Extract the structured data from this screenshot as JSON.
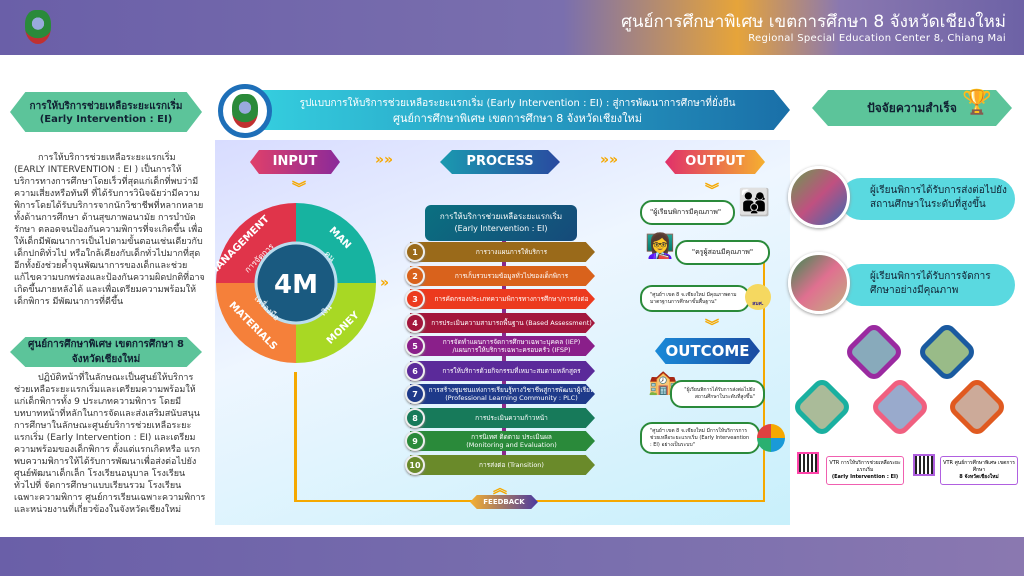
{
  "header": {
    "title_th": "ศูนย์การศึกษาพิเศษ เขตการศึกษา 8 จังหวัดเชียงใหม่",
    "title_en": "Regional Special Education Center 8, Chiang Mai"
  },
  "left": {
    "banner": [
      "การให้บริการช่วยเหลือระยะแรกเริ่ม",
      "(Early Intervention : EI)"
    ],
    "para1": "การให้บริการช่วยเหลือระยะแรกเริ่ม (EARLY INTERVENTION : EI ) เป็นการให้บริการทางการศึกษาโดยเร็วที่สุดแก่เด็กที่พบว่ามีความเสี่ยงหรือทันที ที่ได้รับการวินิจฉัยว่ามีความพิการโดยได้รับบริการจากนักวิชาชีพที่หลากหลายทั้งด้านการศึกษา ด้านสุขภาพอนามัย การบำบัดรักษา ตลอดจนป้องกันความพิการที่จะเกิดขึ้น เพื่อให้เด็กมีพัฒนาการเป็นไปตามขั้นตอนเช่นเดียวกับเด็กปกติทั่วไป หรือใกล้เคียงกับเด็กทั่วไปมากที่สุด อีกทั้งยังช่วยค้ำจุนพัฒนาการของเด็กและช่วยแก้ไขความบกพร่องและป้องกันความผิดปกติที่อาจเกิดขึ้นภายหลังได้ และเพื่อเตรียมความพร้อมให้เด็กพิการ มีพัฒนาการที่ดีขึ้น",
    "banner2": "ศูนย์การศึกษาพิเศษ เขตการศึกษา 8 จังหวัดเชียงใหม่",
    "para2": "ปฏิบัติหน้าที่ในลักษณะเป็นศูนย์ให้บริการช่วยเหลือระยะแรกเริ่มและเตรียมความพร้อมให้แก่เด็กพิการทั้ง 9 ประเภทความพิการ โดยมีบทบาทหน้าที่หลักในการจัดและส่งเสริมสนับสนุนการศึกษาในลักษณะศูนย์บริการช่วยเหลือระยะแรกเริ่ม (Early Intervention : EI) และเตรียมความพร้อมของเด็กพิการ ตั้งแต่แรกเกิดหรือ แรกพบความพิการให้ได้รับการพัฒนาเพื่อส่งต่อไปยัง ศูนย์พัฒนาเด็กเล็ก โรงเรียนอนุบาล โรงเรียนทั่วไปที่ จัดการศึกษาแบบเรียนรวม โรงเรียนเฉพาะความพิการ ศูนย์การเรียนเฉพาะความพิการ และหน่วยงานที่เกี่ยวข้องในจังหวัดเชียงใหม่"
  },
  "title": {
    "line1": "รูปแบบการให้บริการช่วยเหลือระยะแรกเริ่ม (Early Intervention : EI) : สู่การพัฒนาการศึกษาที่ยั่งยืน",
    "line2": "ศูนย์การศึกษาพิเศษ เขตการศึกษา 8 จังหวัดเชียงใหม่"
  },
  "input": {
    "label": "INPUT",
    "center": "4M",
    "quadrants": [
      {
        "en": "MANAGEMENT",
        "th": "การจัดการ",
        "color": "#e0344a"
      },
      {
        "en": "MAN",
        "th": "คน",
        "color": "#17b3a0"
      },
      {
        "en": "MONEY",
        "th": "เงิน",
        "color": "#a8d824"
      },
      {
        "en": "MATERIALS",
        "th": "เครื่องมือ",
        "color": "#f5803a"
      }
    ]
  },
  "process": {
    "label": "PROCESS",
    "head": [
      "การให้บริการช่วยเหลือระยะแรกเริ่ม",
      "(Early Intervention : EI)"
    ],
    "steps": [
      {
        "n": "1",
        "text": "การวางแผนการให้บริการ",
        "sub": "",
        "color": "#9a6a1a"
      },
      {
        "n": "2",
        "text": "การเก็บรวบรวมข้อมูลทั่วไปของเด็กพิการ",
        "sub": "",
        "color": "#d9621c"
      },
      {
        "n": "3",
        "text": "การคัดกรองประเภทความพิการทางการศึกษา/การส่งต่อ",
        "sub": "",
        "color": "#ec3a1e"
      },
      {
        "n": "4",
        "text": "การประเมินความสามารถพื้นฐาน (Based Assessment)",
        "sub": "",
        "color": "#a3173c"
      },
      {
        "n": "5",
        "text": "การจัดทำแผนการจัดการศึกษาเฉพาะบุคคล (IEP)",
        "sub": "/แผนการให้บริการเฉพาะครอบครัว (IFSP)",
        "color": "#8a1f8a"
      },
      {
        "n": "6",
        "text": "การให้บริการด้วยกิจกรรมที่เหมาะสมตามหลักสูตร",
        "sub": "",
        "color": "#5b2a9a"
      },
      {
        "n": "7",
        "text": "การสร้างชุมชนแห่งการเรียนรู้ทางวิชาชีพสู่การพัฒนาผู้เรียน",
        "sub": "(Professional Learning Community : PLC)",
        "color": "#1e3a8a"
      },
      {
        "n": "8",
        "text": "การประเมินความก้าวหน้า",
        "sub": "",
        "color": "#177a5a"
      },
      {
        "n": "9",
        "text": "การนิเทศ ติดตาม ประเมินผล",
        "sub": "(Monitoring and Evaluation)",
        "color": "#2a8a3a"
      },
      {
        "n": "10",
        "text": "การส่งต่อ (Transition)",
        "sub": "",
        "color": "#6a8a2a"
      }
    ]
  },
  "feedback": "FEEDBACK",
  "output": {
    "label": "OUTPUT",
    "items": [
      "\"ผู้เรียนพิการมีคุณภาพ\"",
      "\"ครูผู้สอนมีคุณภาพ\"",
      "\"ศูนย์ฯ เขต 8 จ.เชียงใหม่ มีคุณภาพตามมาตรฐานการศึกษาขั้นพื้นฐาน\""
    ],
    "badge": "สมศ."
  },
  "outcome": {
    "label": "OUTCOME",
    "items": [
      "\"ผู้เรียนพิการได้รับการส่งต่อไปยังสถานศึกษาในระดับที่สูงขึ้น\"",
      "\"ศูนย์ฯ เขต 8 จ.เชียงใหม่ มีการให้บริการการช่วยเหลือระยะแรกเริ่ม (Early Interveantion : EI) อย่างเป็นระบบ\""
    ]
  },
  "right": {
    "banner": "ปัจจัยความสำเร็จ",
    "factors": [
      "ผู้เรียนพิการได้รับการส่งต่อไปยังสถานศึกษาในระดับที่สูงขึ้น",
      "ผู้เรียนพิการได้รับการจัดการศึกษาอย่างมีคุณภาพ"
    ],
    "qr": [
      {
        "l1": "VTR การให้บริการช่วยเหลือระยะแรกเริ่ม",
        "l2": "(Early Intervention : EI)",
        "color": "#f060b0"
      },
      {
        "l1": "VTR ศูนย์การศึกษาพิเศษ เขตการศึกษา",
        "l2": "8 จังหวัดเชียงใหม่",
        "color": "#b060e0"
      }
    ]
  },
  "colors": {
    "header": "#6a5fa8",
    "banner": "#5cc49a",
    "accent": "#f5a800"
  }
}
